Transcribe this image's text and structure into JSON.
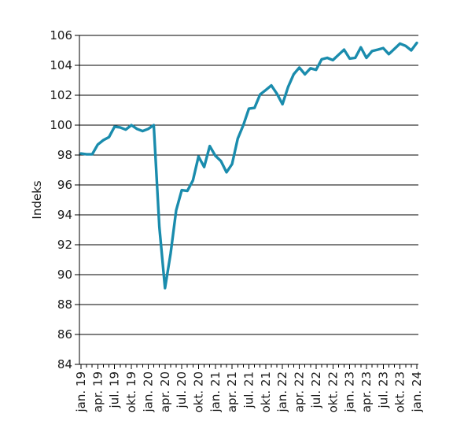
{
  "chart_data": {
    "type": "line",
    "title": "",
    "xlabel": "",
    "ylabel": "Indeks",
    "ylim": [
      84,
      106
    ],
    "yticks": [
      84,
      86,
      88,
      90,
      92,
      94,
      96,
      98,
      100,
      102,
      104,
      106
    ],
    "grid": "horizontal",
    "line_color": "#1a8cad",
    "x_tick_labels": [
      "jan. 19",
      "apr. 19",
      "jul. 19",
      "okt. 19",
      "jan. 20",
      "apr. 20",
      "jul. 20",
      "okt. 20",
      "jan. 21",
      "apr. 21",
      "jul. 21",
      "okt. 21",
      "jan. 22",
      "apr. 22",
      "jul. 22",
      "okt. 22",
      "jan. 23",
      "apr. 23",
      "jul. 23",
      "okt. 23",
      "jan. 24"
    ],
    "series": [
      {
        "values": [
          98.1,
          98.05,
          98.05,
          98.7,
          99.0,
          99.2,
          99.9,
          99.85,
          99.7,
          100.0,
          99.75,
          99.6,
          99.75,
          100.0,
          93.2,
          89.1,
          91.4,
          94.3,
          95.65,
          95.6,
          96.3,
          97.9,
          97.2,
          98.6,
          97.95,
          97.6,
          96.85,
          97.4,
          99.1,
          100.0,
          101.1,
          101.15,
          102.05,
          102.35,
          102.65,
          102.1,
          101.4,
          102.55,
          103.4,
          103.85,
          103.4,
          103.8,
          103.7,
          104.4,
          104.5,
          104.35,
          104.7,
          105.05,
          104.45,
          104.5,
          105.2,
          104.5,
          104.95,
          105.05,
          105.15,
          104.75,
          105.1,
          105.45,
          105.3,
          105.0,
          105.5
        ]
      }
    ]
  }
}
